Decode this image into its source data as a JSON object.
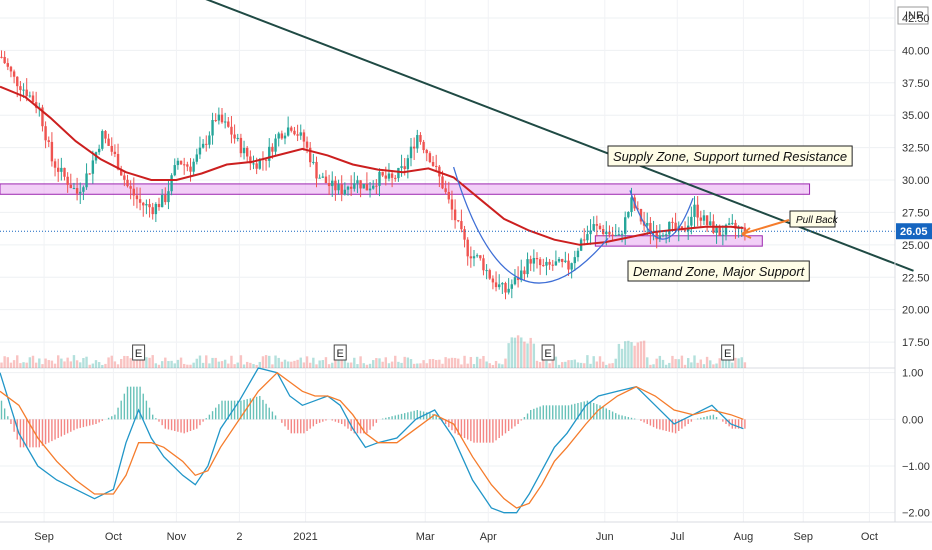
{
  "chart_data": [
    {
      "type": "candlestick",
      "currency": "INR",
      "ylim": [
        15.5,
        43.5
      ],
      "y_ticks": [
        17.5,
        20,
        22.5,
        25,
        27.5,
        30,
        32.5,
        35,
        37.5,
        40,
        42.5
      ],
      "y_tick_labels": [
        "17.50",
        "20.00",
        "22.50",
        "25.00",
        "27.50",
        "30.00",
        "32.50",
        "35.00",
        "37.50",
        "40.00",
        "42.50"
      ],
      "x_ticks": [
        "Sep",
        "Oct",
        "Nov",
        "2",
        "2021",
        "Mar",
        "Apr",
        "Jun",
        "Jul",
        "Aug",
        "Sep",
        "Oct"
      ],
      "last_price": 26.05,
      "last_price_label": "26.05",
      "price_path": [
        [
          0,
          39.5
        ],
        [
          4,
          37.8
        ],
        [
          8,
          36.8
        ],
        [
          12,
          35.5
        ],
        [
          16,
          31.5
        ],
        [
          20,
          30.2
        ],
        [
          24,
          29.0
        ],
        [
          28,
          30.8
        ],
        [
          32,
          33.5
        ],
        [
          36,
          31.8
        ],
        [
          40,
          29.5
        ],
        [
          44,
          28.2
        ],
        [
          48,
          27.8
        ],
        [
          52,
          28.6
        ],
        [
          56,
          31.5
        ],
        [
          60,
          31.0
        ],
        [
          64,
          32.5
        ],
        [
          68,
          34.8
        ],
        [
          72,
          34.0
        ],
        [
          76,
          32.5
        ],
        [
          80,
          31.2
        ],
        [
          84,
          31.8
        ],
        [
          88,
          33.5
        ],
        [
          92,
          34.2
        ],
        [
          96,
          33.0
        ],
        [
          100,
          30.5
        ],
        [
          104,
          29.6
        ],
        [
          108,
          29.2
        ],
        [
          112,
          30.0
        ],
        [
          116,
          29.4
        ],
        [
          120,
          30.2
        ],
        [
          124,
          30.0
        ],
        [
          128,
          31.0
        ],
        [
          132,
          33.5
        ],
        [
          136,
          31.8
        ],
        [
          140,
          29.6
        ],
        [
          144,
          27.0
        ],
        [
          148,
          24.5
        ],
        [
          152,
          23.8
        ],
        [
          156,
          22.2
        ],
        [
          160,
          21.4
        ],
        [
          164,
          22.5
        ],
        [
          168,
          23.9
        ],
        [
          172,
          23.2
        ],
        [
          176,
          23.5
        ],
        [
          180,
          23.3
        ],
        [
          184,
          25.3
        ],
        [
          188,
          26.4
        ],
        [
          192,
          26.0
        ],
        [
          196,
          25.5
        ],
        [
          200,
          28.3
        ],
        [
          204,
          26.5
        ],
        [
          208,
          25.9
        ],
        [
          212,
          26.4
        ],
        [
          216,
          25.8
        ],
        [
          220,
          27.8
        ],
        [
          224,
          26.6
        ],
        [
          228,
          25.9
        ],
        [
          232,
          26.3
        ],
        [
          236,
          26.05
        ]
      ],
      "ma_path": [
        [
          0,
          37.2
        ],
        [
          8,
          36.4
        ],
        [
          16,
          34.8
        ],
        [
          24,
          33.0
        ],
        [
          32,
          31.6
        ],
        [
          40,
          30.6
        ],
        [
          48,
          30.0
        ],
        [
          56,
          30.0
        ],
        [
          64,
          30.5
        ],
        [
          72,
          31.2
        ],
        [
          80,
          31.4
        ],
        [
          88,
          31.9
        ],
        [
          96,
          32.4
        ],
        [
          104,
          31.9
        ],
        [
          112,
          31.2
        ],
        [
          120,
          30.8
        ],
        [
          128,
          30.6
        ],
        [
          136,
          30.9
        ],
        [
          144,
          30.2
        ],
        [
          152,
          28.6
        ],
        [
          160,
          27.0
        ],
        [
          168,
          26.1
        ],
        [
          176,
          25.4
        ],
        [
          184,
          25.0
        ],
        [
          192,
          25.2
        ],
        [
          200,
          25.6
        ],
        [
          208,
          26.0
        ],
        [
          216,
          26.2
        ],
        [
          224,
          26.4
        ],
        [
          232,
          26.4
        ],
        [
          236,
          26.3
        ]
      ],
      "trendline": {
        "start": [
          22,
          48
        ],
        "end": [
          290,
          23.0
        ]
      },
      "supply_zone": {
        "y_low": 28.9,
        "y_high": 29.7,
        "x_start": 0,
        "x_end": 257
      },
      "demand_zone": {
        "y_low": 24.9,
        "y_high": 25.7,
        "x_start": 189,
        "x_end": 242
      },
      "earnings_markers": [
        44,
        108,
        174,
        231
      ],
      "annotations": {
        "supply": "Supply Zone, Support turned Resistance",
        "demand": "Demand Zone, Major Support",
        "pullback": "Pull Back"
      }
    },
    {
      "type": "macd",
      "ylim": [
        -2.2,
        1.1
      ],
      "y_ticks": [
        1.0,
        0.0,
        -1.0,
        -2.0
      ],
      "y_tick_labels": [
        "1.00",
        "0.00",
        "−1.00",
        "−2.00"
      ],
      "macd": [
        [
          0,
          1.0
        ],
        [
          6,
          -0.3
        ],
        [
          12,
          -1.0
        ],
        [
          18,
          -1.3
        ],
        [
          24,
          -1.5
        ],
        [
          30,
          -1.7
        ],
        [
          36,
          -1.5
        ],
        [
          40,
          -0.5
        ],
        [
          44,
          0.2
        ],
        [
          48,
          -0.4
        ],
        [
          52,
          -0.8
        ],
        [
          58,
          -1.2
        ],
        [
          62,
          -1.4
        ],
        [
          66,
          -1.0
        ],
        [
          70,
          -0.2
        ],
        [
          76,
          0.4
        ],
        [
          82,
          1.1
        ],
        [
          88,
          1.0
        ],
        [
          92,
          0.5
        ],
        [
          96,
          0.3
        ],
        [
          100,
          0.4
        ],
        [
          104,
          0.5
        ],
        [
          108,
          0.3
        ],
        [
          112,
          -0.2
        ],
        [
          116,
          -0.6
        ],
        [
          120,
          -0.5
        ],
        [
          126,
          -0.4
        ],
        [
          132,
          0.0
        ],
        [
          138,
          0.2
        ],
        [
          144,
          -0.4
        ],
        [
          150,
          -1.3
        ],
        [
          156,
          -1.9
        ],
        [
          160,
          -2.0
        ],
        [
          164,
          -2.0
        ],
        [
          168,
          -1.6
        ],
        [
          172,
          -1.1
        ],
        [
          176,
          -0.6
        ],
        [
          180,
          -0.3
        ],
        [
          186,
          0.3
        ],
        [
          190,
          0.5
        ],
        [
          196,
          0.6
        ],
        [
          202,
          0.7
        ],
        [
          208,
          0.3
        ],
        [
          214,
          -0.1
        ],
        [
          220,
          0.1
        ],
        [
          226,
          0.3
        ],
        [
          232,
          -0.1
        ],
        [
          236,
          -0.2
        ]
      ],
      "signal": [
        [
          0,
          0.6
        ],
        [
          6,
          0.3
        ],
        [
          12,
          -0.4
        ],
        [
          18,
          -0.9
        ],
        [
          24,
          -1.3
        ],
        [
          30,
          -1.6
        ],
        [
          36,
          -1.6
        ],
        [
          40,
          -1.2
        ],
        [
          44,
          -0.5
        ],
        [
          48,
          -0.5
        ],
        [
          52,
          -0.6
        ],
        [
          58,
          -0.9
        ],
        [
          62,
          -1.2
        ],
        [
          66,
          -1.1
        ],
        [
          70,
          -0.6
        ],
        [
          76,
          0.0
        ],
        [
          82,
          0.6
        ],
        [
          88,
          1.0
        ],
        [
          92,
          0.8
        ],
        [
          96,
          0.6
        ],
        [
          100,
          0.5
        ],
        [
          104,
          0.5
        ],
        [
          108,
          0.4
        ],
        [
          112,
          0.1
        ],
        [
          116,
          -0.3
        ],
        [
          120,
          -0.5
        ],
        [
          126,
          -0.5
        ],
        [
          132,
          -0.2
        ],
        [
          138,
          0.1
        ],
        [
          144,
          -0.1
        ],
        [
          150,
          -0.8
        ],
        [
          156,
          -1.4
        ],
        [
          160,
          -1.7
        ],
        [
          164,
          -1.9
        ],
        [
          168,
          -1.8
        ],
        [
          172,
          -1.4
        ],
        [
          176,
          -0.9
        ],
        [
          180,
          -0.6
        ],
        [
          186,
          -0.1
        ],
        [
          190,
          0.2
        ],
        [
          196,
          0.5
        ],
        [
          202,
          0.7
        ],
        [
          208,
          0.5
        ],
        [
          214,
          0.2
        ],
        [
          220,
          0.1
        ],
        [
          226,
          0.2
        ],
        [
          232,
          0.1
        ],
        [
          236,
          0.0
        ]
      ]
    }
  ],
  "colors": {
    "up": "#26a69a",
    "down": "#ef5350",
    "ma": "#cc1f1f",
    "trendline": "#1f4a44",
    "macd_line": "#2196c8",
    "signal_line": "#f57c2c",
    "zone_fill": "#e8a8f0",
    "zone_stroke": "#9c27b0",
    "price_tag": "#1565c0",
    "axis_text": "#333333"
  }
}
